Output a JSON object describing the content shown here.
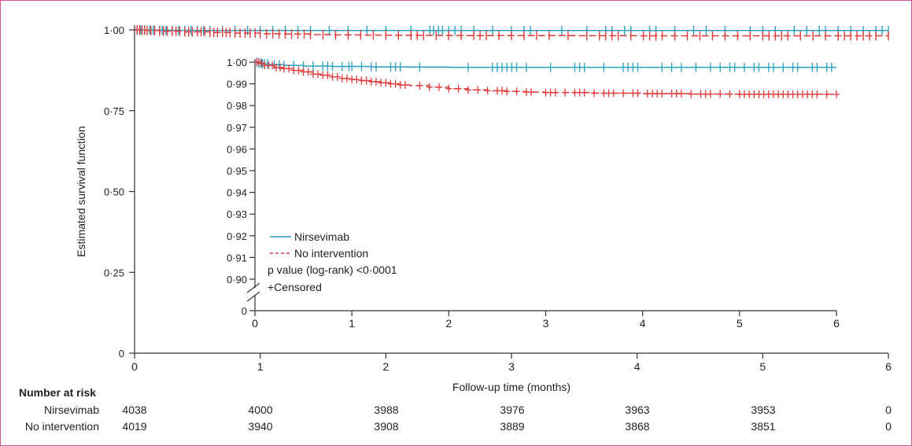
{
  "chart_data": [
    {
      "name": "main-km-plot",
      "type": "line",
      "xlabel": "Follow-up time (months)",
      "ylabel": "Estimated survival function",
      "xlim": [
        0,
        6
      ],
      "ylim": [
        0,
        1
      ],
      "x_ticks": [
        "0",
        "1",
        "2",
        "3",
        "4",
        "5",
        "6"
      ],
      "y_ticks": [
        "0",
        "0·25",
        "0·50",
        "0·75",
        "1·00"
      ],
      "series": [
        {
          "name": "Nirsevimab",
          "color": "#2a9fbf",
          "style": "solid",
          "x": [
            0,
            0.05,
            0.15,
            0.3,
            0.5,
            0.8,
            1.0,
            1.5,
            2.0,
            3.0,
            4.0,
            5.0,
            6.0
          ],
          "y": [
            1.0,
            0.9995,
            0.999,
            0.9985,
            0.998,
            0.998,
            0.998,
            0.998,
            0.998,
            0.998,
            0.998,
            0.998,
            0.998
          ],
          "censored_x": [
            0.02,
            0.05,
            0.08,
            0.12,
            0.15,
            0.2,
            0.22,
            0.25,
            0.3,
            0.35,
            0.4,
            0.45,
            0.5,
            0.55,
            0.6,
            0.7,
            0.8,
            0.9,
            1.0,
            1.1,
            1.2,
            1.3,
            1.4,
            1.55,
            1.7,
            1.85,
            2.0,
            2.2,
            2.35,
            2.38,
            2.42,
            2.45,
            2.5,
            2.55,
            2.6,
            2.7,
            2.85,
            3.0,
            3.1,
            3.15,
            3.4,
            3.6,
            3.75,
            3.8,
            3.9,
            3.95,
            4.1,
            4.15,
            4.3,
            4.45,
            4.55,
            4.7,
            4.9,
            5.0,
            5.1,
            5.25,
            5.35,
            5.45,
            5.5,
            5.6,
            5.7,
            5.8,
            5.9,
            5.95,
            6.0
          ]
        },
        {
          "name": "No intervention",
          "color": "#e03a3a",
          "style": "dashed",
          "x": [
            0,
            0.05,
            0.1,
            0.2,
            0.4,
            0.6,
            0.8,
            1.0,
            1.2,
            1.4,
            1.6,
            1.8,
            2.0,
            2.2,
            2.4,
            2.6,
            2.8,
            3.0,
            3.5,
            4.0,
            5.0,
            6.0
          ],
          "y": [
            1.0,
            0.999,
            0.998,
            0.996,
            0.994,
            0.992,
            0.99,
            0.988,
            0.987,
            0.9855,
            0.9845,
            0.984,
            0.9835,
            0.983,
            0.9828,
            0.9826,
            0.9824,
            0.9822,
            0.982,
            0.9818,
            0.9817,
            0.9817
          ],
          "censored_x": [
            0.02,
            0.04,
            0.06,
            0.08,
            0.1,
            0.13,
            0.16,
            0.2,
            0.23,
            0.26,
            0.3,
            0.33,
            0.36,
            0.4,
            0.43,
            0.46,
            0.5,
            0.53,
            0.56,
            0.6,
            0.63,
            0.66,
            0.7,
            0.73,
            0.76,
            0.8,
            0.84,
            0.88,
            0.92,
            0.96,
            1.0,
            1.05,
            1.1,
            1.15,
            1.2,
            1.25,
            1.3,
            1.35,
            1.4,
            1.5,
            1.6,
            1.7,
            1.8,
            1.9,
            2.0,
            2.1,
            2.2,
            2.25,
            2.3,
            2.4,
            2.5,
            2.6,
            2.7,
            2.75,
            2.8,
            2.9,
            3.0,
            3.1,
            3.2,
            3.3,
            3.45,
            3.6,
            3.7,
            3.75,
            3.8,
            3.85,
            3.95,
            4.05,
            4.1,
            4.15,
            4.2,
            4.3,
            4.4,
            4.5,
            4.6,
            4.7,
            4.8,
            4.9,
            5.0,
            5.05,
            5.1,
            5.15,
            5.2,
            5.3,
            5.4,
            5.5,
            5.6,
            5.65,
            5.7,
            5.75,
            5.8,
            5.85,
            5.9,
            6.0
          ]
        }
      ]
    },
    {
      "name": "inset-km-plot",
      "type": "line",
      "xlim": [
        0,
        6
      ],
      "ylim": [
        0.9,
        1.0
      ],
      "axis_break": true,
      "x_ticks": [
        "0",
        "1",
        "2",
        "3",
        "4",
        "5",
        "6"
      ],
      "y_ticks": [
        "0·90",
        "0·91",
        "0·92",
        "0·93",
        "0·94",
        "0·95",
        "0·96",
        "0·97",
        "0·98",
        "0·99",
        "1·00"
      ],
      "y_break_label": "0",
      "legend_position": "bottom-left",
      "annotations": [
        "p value (log-rank) <0·0001",
        "+Censored"
      ],
      "series": [
        {
          "name": "Nirsevimab",
          "color": "#2a9fbf",
          "style": "solid",
          "x": [
            0,
            0.03,
            0.08,
            0.15,
            0.3,
            0.5,
            0.8,
            1.2,
            1.6,
            2.0,
            3.0,
            4.0,
            5.0,
            6.0
          ],
          "y": [
            1.0,
            0.9995,
            0.9992,
            0.9988,
            0.9985,
            0.9982,
            0.998,
            0.9978,
            0.9977,
            0.9976,
            0.9976,
            0.9976,
            0.9976,
            0.9976
          ],
          "censored_x": [
            0.02,
            0.04,
            0.06,
            0.08,
            0.1,
            0.13,
            0.2,
            0.25,
            0.3,
            0.4,
            0.5,
            0.6,
            0.7,
            0.75,
            0.8,
            0.9,
            0.97,
            1.0,
            1.1,
            1.2,
            1.25,
            1.4,
            1.45,
            1.5,
            1.7,
            2.2,
            2.45,
            2.5,
            2.55,
            2.6,
            2.65,
            2.7,
            2.8,
            3.05,
            3.3,
            3.35,
            3.4,
            3.6,
            3.8,
            3.85,
            3.9,
            3.95,
            4.2,
            4.3,
            4.4,
            4.55,
            4.7,
            4.8,
            4.9,
            4.95,
            5.05,
            5.15,
            5.2,
            5.3,
            5.35,
            5.45,
            5.55,
            5.6,
            5.75,
            5.8,
            5.9,
            5.95
          ]
        },
        {
          "name": "No intervention",
          "color": "#e03a3a",
          "style": "dashed",
          "x": [
            0,
            0.05,
            0.1,
            0.2,
            0.3,
            0.4,
            0.5,
            0.6,
            0.7,
            0.8,
            0.9,
            1.0,
            1.1,
            1.2,
            1.3,
            1.4,
            1.5,
            1.6,
            1.8,
            2.0,
            2.2,
            2.4,
            2.6,
            2.8,
            3.0,
            3.5,
            4.0,
            4.5,
            5.0,
            5.5,
            6.0
          ],
          "y": [
            1.0,
            0.9995,
            0.9985,
            0.9975,
            0.997,
            0.9962,
            0.9955,
            0.9945,
            0.994,
            0.9932,
            0.9925,
            0.992,
            0.9915,
            0.991,
            0.9905,
            0.99,
            0.9895,
            0.9892,
            0.9885,
            0.9878,
            0.9872,
            0.9868,
            0.9865,
            0.9862,
            0.986,
            0.9857,
            0.9855,
            0.9853,
            0.9852,
            0.9852,
            0.9852
          ],
          "censored_x": [
            0.02,
            0.04,
            0.07,
            0.1,
            0.14,
            0.18,
            0.22,
            0.26,
            0.3,
            0.35,
            0.4,
            0.45,
            0.5,
            0.55,
            0.6,
            0.65,
            0.7,
            0.75,
            0.8,
            0.85,
            0.9,
            0.95,
            1.0,
            1.05,
            1.1,
            1.15,
            1.2,
            1.25,
            1.3,
            1.35,
            1.4,
            1.45,
            1.5,
            1.55,
            1.7,
            1.8,
            1.9,
            2.0,
            2.1,
            2.2,
            2.3,
            2.4,
            2.5,
            2.55,
            2.6,
            2.7,
            2.8,
            2.85,
            3.0,
            3.05,
            3.1,
            3.2,
            3.3,
            3.35,
            3.4,
            3.5,
            3.6,
            3.65,
            3.7,
            3.8,
            3.9,
            3.95,
            4.05,
            4.1,
            4.15,
            4.2,
            4.3,
            4.35,
            4.4,
            4.5,
            4.6,
            4.65,
            4.7,
            4.8,
            4.9,
            5.0,
            5.05,
            5.1,
            5.15,
            5.2,
            5.25,
            5.3,
            5.35,
            5.4,
            5.45,
            5.5,
            5.55,
            5.6,
            5.65,
            5.7,
            5.75,
            5.8,
            5.9,
            6.0
          ]
        }
      ]
    }
  ],
  "risk_table": {
    "title": "Number at risk",
    "rows": [
      {
        "label": "Nirsevimab",
        "values": [
          "4038",
          "4000",
          "3988",
          "3976",
          "3963",
          "3953",
          "0"
        ]
      },
      {
        "label": "No intervention",
        "values": [
          "4019",
          "3940",
          "3908",
          "3889",
          "3868",
          "3851",
          "0"
        ]
      }
    ]
  }
}
